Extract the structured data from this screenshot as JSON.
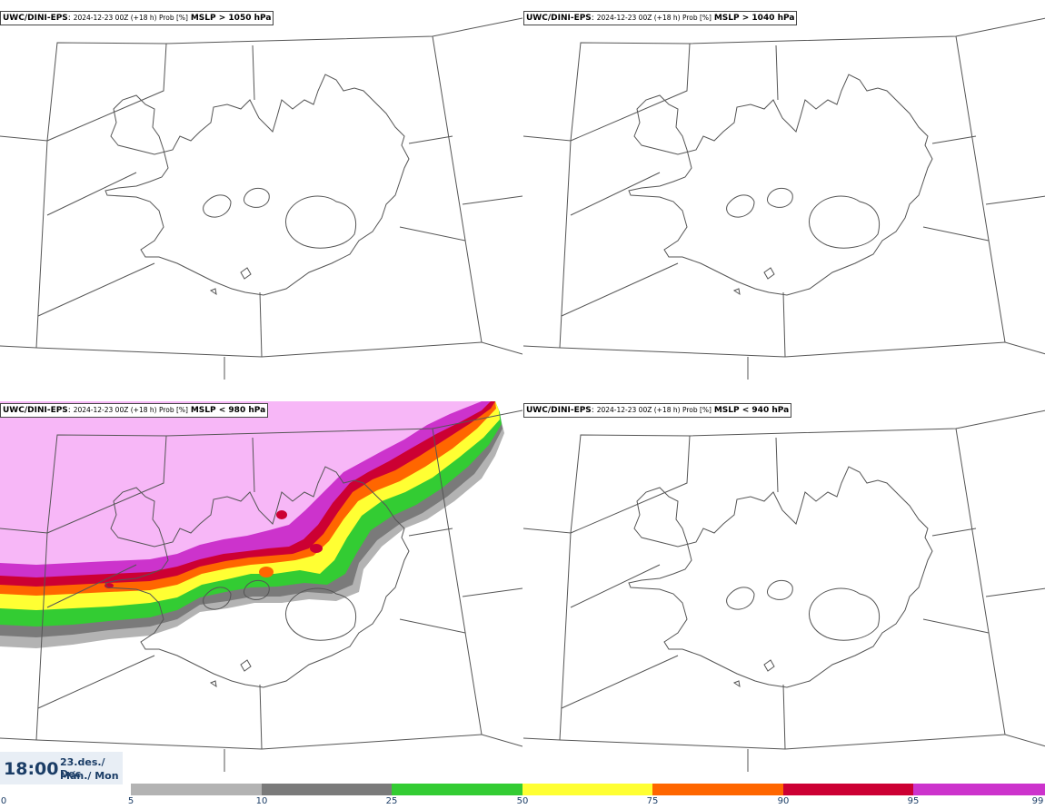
{
  "panels": [
    {
      "model": "UWC/DINI-EPS",
      "meta": "2024-12-23 00Z (+18 h) Prob [%]",
      "threshold": "MSLP > 1050 hPa"
    },
    {
      "model": "UWC/DINI-EPS",
      "meta": "2024-12-23 00Z (+18 h) Prob [%]",
      "threshold": "MSLP > 1040 hPa"
    },
    {
      "model": "UWC/DINI-EPS",
      "meta": "2024-12-23 00Z (+18 h) Prob [%]",
      "threshold": "MSLP < 980 hPa"
    },
    {
      "model": "UWC/DINI-EPS",
      "meta": "2024-12-23 00Z (+18 h) Prob [%]",
      "threshold": "MSLP < 940 hPa"
    }
  ],
  "footer": {
    "time": "18:00",
    "date_line1": "23.des./ Dec",
    "date_line2": "Mán./ Mon"
  },
  "colorbar": {
    "ticks": [
      "0",
      "5",
      "10",
      "25",
      "50",
      "75",
      "90",
      "95",
      "99"
    ],
    "colors": [
      "#b3b3b3",
      "#7a7a7a",
      "#33cc33",
      "#ffff33",
      "#ff6600",
      "#cc0033",
      "#cc33cc"
    ]
  },
  "map_colors": {
    "coast": "#555555",
    "boundary": "#555555",
    "prob_bg": "#f7b7f7"
  }
}
